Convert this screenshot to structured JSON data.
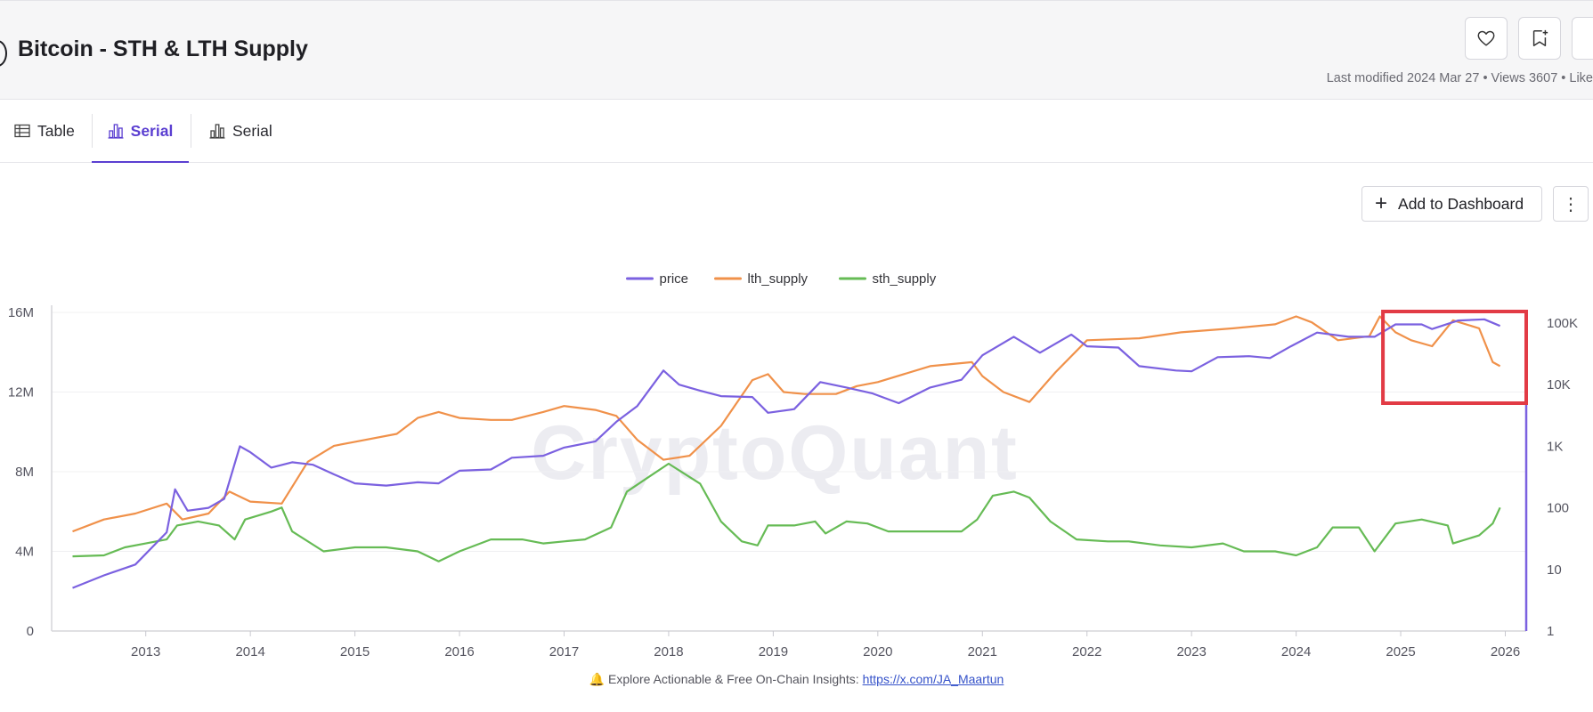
{
  "header": {
    "title": "Bitcoin - STH & LTH Supply",
    "meta": "Last modified 2024 Mar 27 • Views 3607 • Like",
    "like_icon": "heart-icon",
    "bookmark_icon": "bookmark-plus-icon"
  },
  "tabs": [
    {
      "label": "Table",
      "icon": "table-icon",
      "active": false
    },
    {
      "label": "Serial",
      "icon": "bar-chart-icon",
      "active": true
    },
    {
      "label": "Serial",
      "icon": "bar-chart-icon",
      "active": false
    }
  ],
  "toolbar": {
    "add_dashboard_label": "Add to Dashboard",
    "more_icon": "vertical-dots-icon"
  },
  "watermark": "CryptoQuant",
  "footer": {
    "prefix": "🔔 Explore Actionable & Free On-Chain Insights: ",
    "link": "https://x.com/JA_Maartun"
  },
  "colors": {
    "price": "#7b61e0",
    "lth_supply": "#f0914a",
    "sth_supply": "#66bb55",
    "highlight_box": "#e23b45",
    "accent": "#5b3fd1"
  },
  "chart_data": {
    "type": "line",
    "legend": [
      "price",
      "lth_supply",
      "sth_supply"
    ],
    "legend_position": "top-center",
    "x_ticks": [
      "2013",
      "2014",
      "2015",
      "2016",
      "2017",
      "2018",
      "2019",
      "2020",
      "2021",
      "2022",
      "2023",
      "2024",
      "2025",
      "2026"
    ],
    "x_range": [
      2012.1,
      2026.2
    ],
    "y_left": {
      "ticks": [
        "0",
        "4M",
        "8M",
        "12M",
        "16M"
      ],
      "range": [
        0,
        16000000
      ],
      "series": [
        "lth_supply",
        "sth_supply"
      ]
    },
    "y_right": {
      "ticks": [
        "1",
        "10",
        "100",
        "1K",
        "10K",
        "100K"
      ],
      "scale": "log",
      "range": [
        1,
        100000
      ],
      "series": [
        "price"
      ]
    },
    "grid": "horizontal",
    "highlight": {
      "x_range": [
        2024.83,
        2026.2
      ],
      "note": "red rectangle around recent period"
    },
    "series": [
      {
        "name": "price",
        "axis": "right",
        "points": [
          [
            2012.3,
            5
          ],
          [
            2012.6,
            8
          ],
          [
            2012.9,
            12
          ],
          [
            2013.2,
            40
          ],
          [
            2013.28,
            200
          ],
          [
            2013.4,
            90
          ],
          [
            2013.6,
            100
          ],
          [
            2013.75,
            140
          ],
          [
            2013.9,
            1000
          ],
          [
            2014.0,
            800
          ],
          [
            2014.2,
            450
          ],
          [
            2014.4,
            550
          ],
          [
            2014.6,
            500
          ],
          [
            2014.8,
            350
          ],
          [
            2015.0,
            250
          ],
          [
            2015.3,
            230
          ],
          [
            2015.6,
            260
          ],
          [
            2015.8,
            250
          ],
          [
            2016.0,
            400
          ],
          [
            2016.3,
            420
          ],
          [
            2016.5,
            650
          ],
          [
            2016.8,
            700
          ],
          [
            2017.0,
            950
          ],
          [
            2017.3,
            1200
          ],
          [
            2017.5,
            2500
          ],
          [
            2017.7,
            4500
          ],
          [
            2017.95,
            17000
          ],
          [
            2018.1,
            10000
          ],
          [
            2018.3,
            8000
          ],
          [
            2018.5,
            6500
          ],
          [
            2018.8,
            6300
          ],
          [
            2018.95,
            3500
          ],
          [
            2019.2,
            4000
          ],
          [
            2019.45,
            11000
          ],
          [
            2019.7,
            9000
          ],
          [
            2019.95,
            7200
          ],
          [
            2020.2,
            5000
          ],
          [
            2020.5,
            9000
          ],
          [
            2020.8,
            12000
          ],
          [
            2021.0,
            30000
          ],
          [
            2021.3,
            60000
          ],
          [
            2021.55,
            33000
          ],
          [
            2021.85,
            65000
          ],
          [
            2022.0,
            42000
          ],
          [
            2022.3,
            40000
          ],
          [
            2022.5,
            20000
          ],
          [
            2022.85,
            17000
          ],
          [
            2023.0,
            16500
          ],
          [
            2023.25,
            28000
          ],
          [
            2023.55,
            29000
          ],
          [
            2023.75,
            27000
          ],
          [
            2023.95,
            42000
          ],
          [
            2024.2,
            70000
          ],
          [
            2024.5,
            60000
          ],
          [
            2024.75,
            60000
          ],
          [
            2024.95,
            95000
          ],
          [
            2025.2,
            95000
          ],
          [
            2025.3,
            80000
          ],
          [
            2025.55,
            110000
          ],
          [
            2025.8,
            115000
          ],
          [
            2025.95,
            90000
          ]
        ]
      },
      {
        "name": "lth_supply",
        "axis": "left",
        "points": [
          [
            2012.3,
            5000000
          ],
          [
            2012.6,
            5600000
          ],
          [
            2012.9,
            5900000
          ],
          [
            2013.2,
            6400000
          ],
          [
            2013.35,
            5600000
          ],
          [
            2013.6,
            5900000
          ],
          [
            2013.8,
            7000000
          ],
          [
            2014.0,
            6500000
          ],
          [
            2014.3,
            6400000
          ],
          [
            2014.55,
            8500000
          ],
          [
            2014.8,
            9300000
          ],
          [
            2015.0,
            9500000
          ],
          [
            2015.4,
            9900000
          ],
          [
            2015.6,
            10700000
          ],
          [
            2015.8,
            11000000
          ],
          [
            2016.0,
            10700000
          ],
          [
            2016.3,
            10600000
          ],
          [
            2016.5,
            10600000
          ],
          [
            2016.8,
            11000000
          ],
          [
            2017.0,
            11300000
          ],
          [
            2017.3,
            11100000
          ],
          [
            2017.5,
            10800000
          ],
          [
            2017.7,
            9600000
          ],
          [
            2017.95,
            8600000
          ],
          [
            2018.2,
            8800000
          ],
          [
            2018.5,
            10300000
          ],
          [
            2018.8,
            12600000
          ],
          [
            2018.95,
            12900000
          ],
          [
            2019.1,
            12000000
          ],
          [
            2019.3,
            11900000
          ],
          [
            2019.6,
            11900000
          ],
          [
            2019.8,
            12300000
          ],
          [
            2020.0,
            12500000
          ],
          [
            2020.5,
            13300000
          ],
          [
            2020.9,
            13500000
          ],
          [
            2021.0,
            12800000
          ],
          [
            2021.2,
            12000000
          ],
          [
            2021.45,
            11500000
          ],
          [
            2021.7,
            13000000
          ],
          [
            2022.0,
            14600000
          ],
          [
            2022.5,
            14700000
          ],
          [
            2022.9,
            15000000
          ],
          [
            2023.4,
            15200000
          ],
          [
            2023.8,
            15400000
          ],
          [
            2024.0,
            15800000
          ],
          [
            2024.15,
            15500000
          ],
          [
            2024.4,
            14600000
          ],
          [
            2024.7,
            14800000
          ],
          [
            2024.8,
            15800000
          ],
          [
            2024.95,
            15000000
          ],
          [
            2025.1,
            14600000
          ],
          [
            2025.3,
            14300000
          ],
          [
            2025.5,
            15600000
          ],
          [
            2025.75,
            15200000
          ],
          [
            2025.88,
            13500000
          ],
          [
            2025.95,
            13300000
          ]
        ]
      },
      {
        "name": "sth_supply",
        "axis": "left",
        "points": [
          [
            2012.3,
            3750000
          ],
          [
            2012.6,
            3800000
          ],
          [
            2012.8,
            4200000
          ],
          [
            2013.0,
            4400000
          ],
          [
            2013.2,
            4600000
          ],
          [
            2013.3,
            5300000
          ],
          [
            2013.5,
            5500000
          ],
          [
            2013.7,
            5300000
          ],
          [
            2013.85,
            4600000
          ],
          [
            2013.95,
            5600000
          ],
          [
            2014.2,
            6000000
          ],
          [
            2014.3,
            6200000
          ],
          [
            2014.4,
            5000000
          ],
          [
            2014.7,
            4000000
          ],
          [
            2015.0,
            4200000
          ],
          [
            2015.3,
            4200000
          ],
          [
            2015.6,
            4000000
          ],
          [
            2015.8,
            3500000
          ],
          [
            2016.0,
            4000000
          ],
          [
            2016.3,
            4600000
          ],
          [
            2016.6,
            4600000
          ],
          [
            2016.8,
            4400000
          ],
          [
            2017.0,
            4500000
          ],
          [
            2017.2,
            4600000
          ],
          [
            2017.45,
            5200000
          ],
          [
            2017.6,
            7000000
          ],
          [
            2017.8,
            7700000
          ],
          [
            2018.0,
            8400000
          ],
          [
            2018.3,
            7400000
          ],
          [
            2018.5,
            5500000
          ],
          [
            2018.7,
            4500000
          ],
          [
            2018.85,
            4300000
          ],
          [
            2018.95,
            5300000
          ],
          [
            2019.2,
            5300000
          ],
          [
            2019.4,
            5500000
          ],
          [
            2019.5,
            4900000
          ],
          [
            2019.7,
            5500000
          ],
          [
            2019.9,
            5400000
          ],
          [
            2020.1,
            5000000
          ],
          [
            2020.5,
            5000000
          ],
          [
            2020.8,
            5000000
          ],
          [
            2020.95,
            5600000
          ],
          [
            2021.1,
            6800000
          ],
          [
            2021.3,
            7000000
          ],
          [
            2021.45,
            6700000
          ],
          [
            2021.65,
            5500000
          ],
          [
            2021.9,
            4600000
          ],
          [
            2022.2,
            4500000
          ],
          [
            2022.4,
            4500000
          ],
          [
            2022.7,
            4300000
          ],
          [
            2023.0,
            4200000
          ],
          [
            2023.3,
            4400000
          ],
          [
            2023.5,
            4000000
          ],
          [
            2023.8,
            4000000
          ],
          [
            2024.0,
            3800000
          ],
          [
            2024.2,
            4200000
          ],
          [
            2024.35,
            5200000
          ],
          [
            2024.6,
            5200000
          ],
          [
            2024.75,
            4000000
          ],
          [
            2024.95,
            5400000
          ],
          [
            2025.2,
            5600000
          ],
          [
            2025.45,
            5300000
          ],
          [
            2025.5,
            4400000
          ],
          [
            2025.75,
            4800000
          ],
          [
            2025.88,
            5400000
          ],
          [
            2025.95,
            6200000
          ]
        ]
      }
    ]
  }
}
